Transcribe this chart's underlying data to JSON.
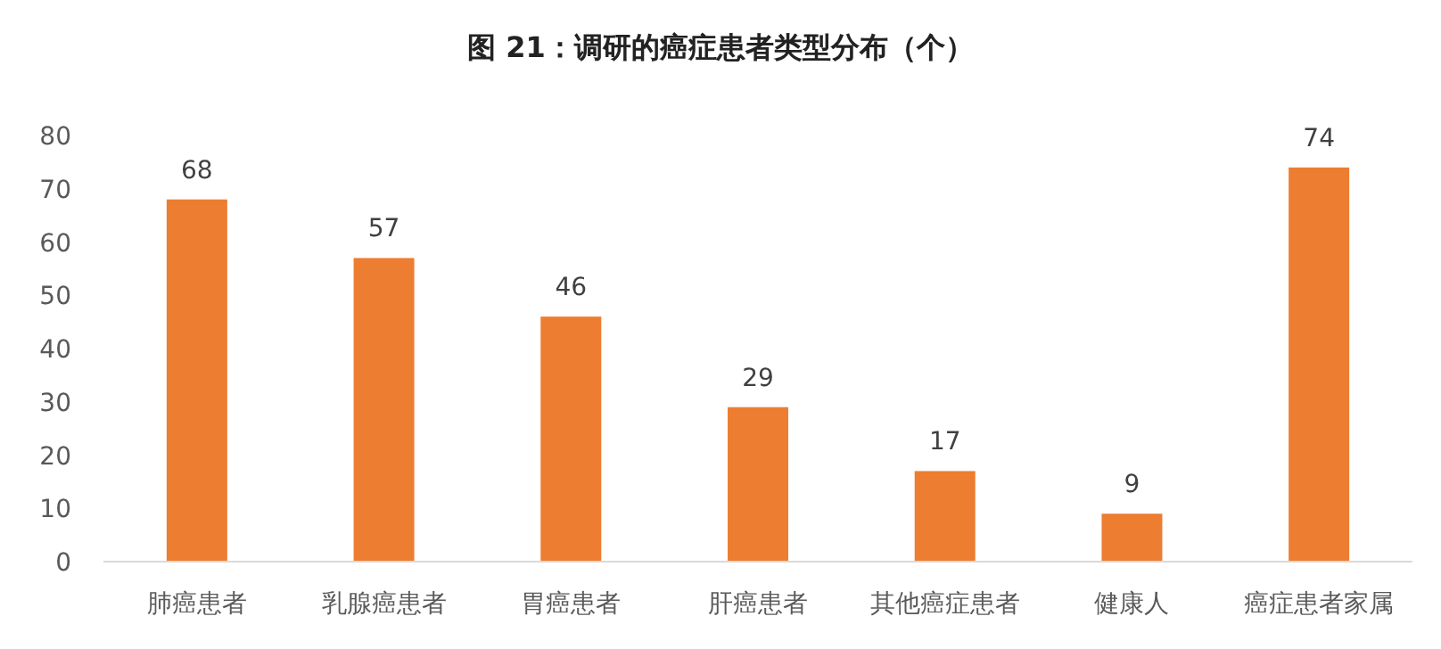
{
  "chart_data": {
    "type": "bar",
    "title": "图  21：调研的癌症患者类型分布（个）",
    "categories": [
      "肺癌患者",
      "乳腺癌患者",
      "胃癌患者",
      "肝癌患者",
      "其他癌症患者",
      "健康人",
      "癌症患者家属"
    ],
    "values": [
      68,
      57,
      46,
      29,
      17,
      9,
      74
    ],
    "color": "#ed7d31",
    "ylim": [
      0,
      80
    ],
    "yticks": [
      0,
      10,
      20,
      30,
      40,
      50,
      60,
      70,
      80
    ],
    "grid": false,
    "data_labels": true
  }
}
